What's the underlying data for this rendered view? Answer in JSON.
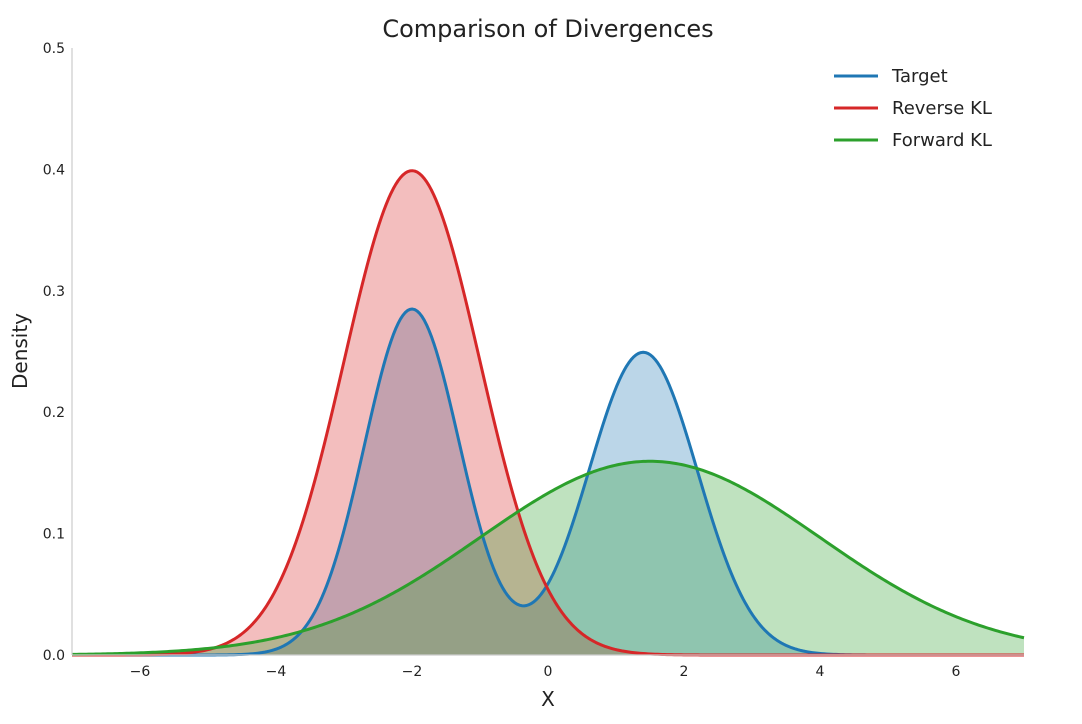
{
  "chart_data": {
    "type": "area",
    "title": "Comparison of Divergences",
    "xlabel": "X",
    "ylabel": "Density",
    "xlim": [
      -7,
      7
    ],
    "ylim": [
      0,
      0.5
    ],
    "xticks": [
      -6,
      -4,
      -2,
      0,
      2,
      4,
      6
    ],
    "xtick_labels": [
      "−6",
      "−4",
      "−2",
      "0",
      "2",
      "4",
      "6"
    ],
    "yticks": [
      0.0,
      0.1,
      0.2,
      0.3,
      0.4,
      0.5
    ],
    "ytick_labels": [
      "0.0",
      "0.1",
      "0.2",
      "0.3",
      "0.4",
      "0.5"
    ],
    "grid": false,
    "legend_position": "top-right",
    "series": [
      {
        "name": "Target",
        "color": "#1f77b4",
        "fill_opacity": 0.3,
        "components": [
          {
            "mean": -2,
            "std": 0.7,
            "weight": 0.5
          },
          {
            "mean": 1.4,
            "std": 0.8,
            "weight": 0.5
          }
        ],
        "peaks": [
          {
            "x": -2,
            "y": 0.285
          },
          {
            "x": 1.4,
            "y": 0.25
          }
        ],
        "trough": {
          "x": -0.4,
          "y": 0.04
        }
      },
      {
        "name": "Reverse KL",
        "color": "#d62728",
        "fill_opacity": 0.3,
        "components": [
          {
            "mean": -2,
            "std": 1.0,
            "weight": 1.0
          }
        ],
        "peaks": [
          {
            "x": -2,
            "y": 0.4
          }
        ]
      },
      {
        "name": "Forward KL",
        "color": "#2ca02c",
        "fill_opacity": 0.3,
        "components": [
          {
            "mean": 1.5,
            "std": 2.5,
            "weight": 1.0
          }
        ],
        "peaks": [
          {
            "x": 1.5,
            "y": 0.16
          }
        ]
      }
    ]
  }
}
